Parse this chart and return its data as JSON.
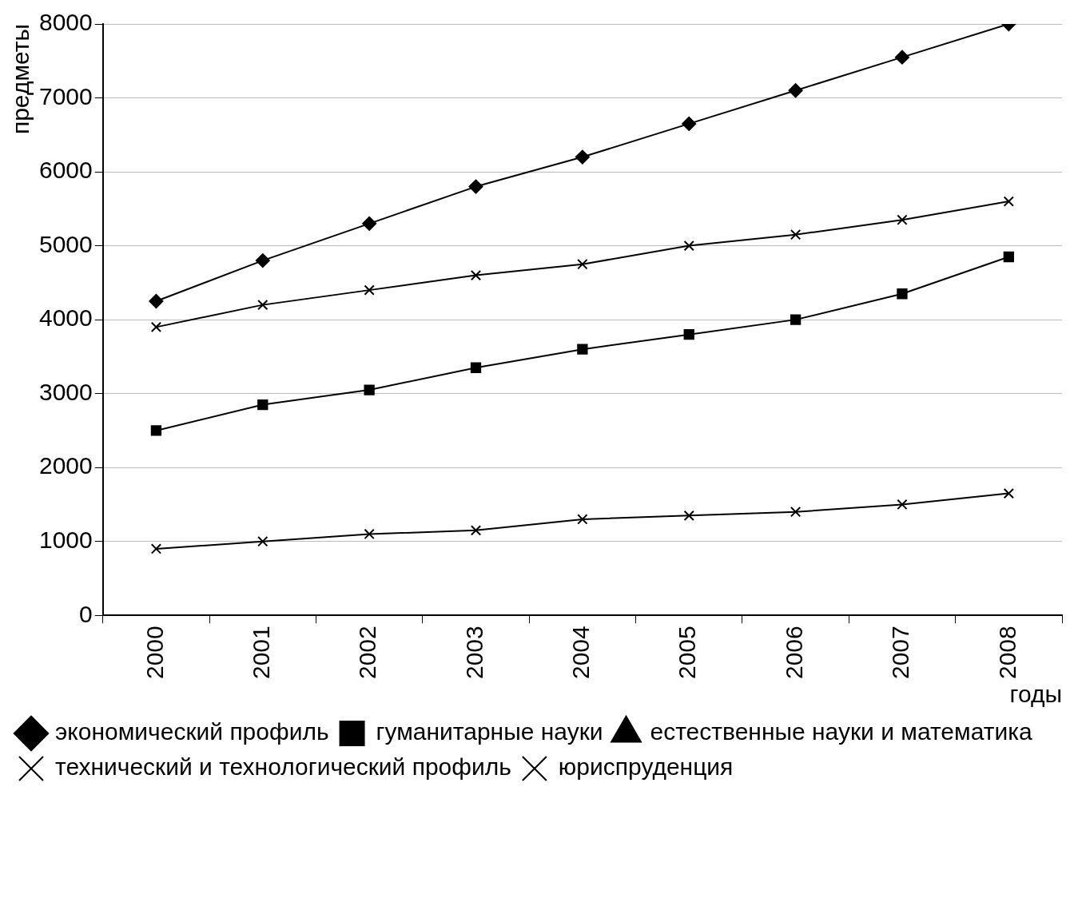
{
  "chart_data": {
    "type": "line",
    "xlabel": "годы",
    "ylabel": "предметы",
    "categories": [
      "2000",
      "2001",
      "2002",
      "2003",
      "2004",
      "2005",
      "2006",
      "2007",
      "2008"
    ],
    "series": [
      {
        "name": "экономический профиль",
        "color": "#000000",
        "marker": "diamond",
        "values": [
          4250,
          4800,
          5300,
          5800,
          6200,
          6650,
          7100,
          7550,
          8000
        ]
      },
      {
        "name": "гуманитарные науки",
        "color": "#000000",
        "marker": "square",
        "values": [
          2500,
          2850,
          3050,
          3350,
          3600,
          3800,
          4000,
          4350,
          4850
        ]
      },
      {
        "name": "естественные науки и математика",
        "color": "#000000",
        "marker": "triangle",
        "values": [
          null,
          null,
          null,
          null,
          null,
          null,
          null,
          null,
          null
        ]
      },
      {
        "name": "технический и технологический профиль",
        "color": "#000000",
        "marker": "cross",
        "values": [
          3900,
          4200,
          4400,
          4600,
          4750,
          5000,
          5150,
          5350,
          5600
        ]
      },
      {
        "name": "юриспруденция",
        "color": "#000000",
        "marker": "cross",
        "values": [
          900,
          1000,
          1100,
          1150,
          1300,
          1350,
          1400,
          1500,
          1650
        ]
      }
    ],
    "ylim": [
      0,
      8000
    ],
    "yticks": [
      0,
      1000,
      2000,
      3000,
      4000,
      5000,
      6000,
      7000,
      8000
    ],
    "grid": "y",
    "legend": "bottom",
    "line_style": "solid"
  }
}
